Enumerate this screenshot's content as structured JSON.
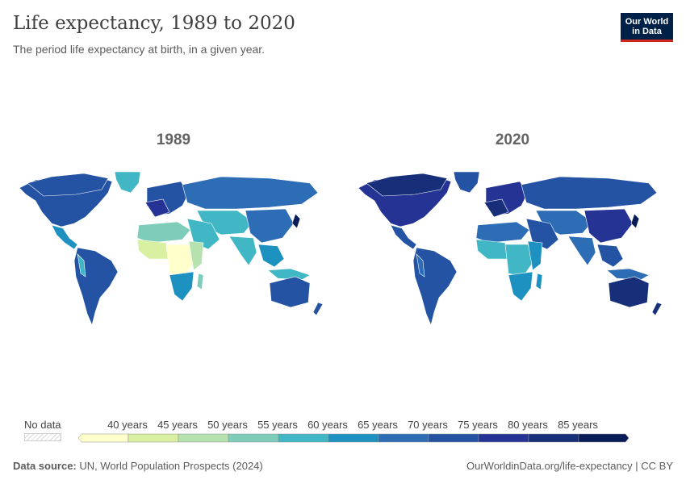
{
  "header": {
    "title": "Life expectancy, 1989 to 2020",
    "subtitle": "The period life expectancy at birth, in a given year.",
    "logo_line1": "Our World",
    "logo_line2": "in Data"
  },
  "maps": [
    {
      "year": "1989"
    },
    {
      "year": "2020"
    }
  ],
  "legend": {
    "no_data_label": "No data",
    "bins": [
      "40 years",
      "45 years",
      "50 years",
      "55 years",
      "60 years",
      "65 years",
      "70 years",
      "75 years",
      "80 years",
      "85 years"
    ],
    "colors": [
      "#ffffcc",
      "#d9f0a3",
      "#b6e2b0",
      "#7ecdbb",
      "#41b6c4",
      "#1d91c0",
      "#2c6db5",
      "#2553a4",
      "#253494",
      "#172f78",
      "#081d58"
    ]
  },
  "footer": {
    "source_label": "Data source:",
    "source_text": "UN, World Population Prospects (2024)",
    "url_text": "OurWorldinData.org/life-expectancy | CC BY"
  }
}
